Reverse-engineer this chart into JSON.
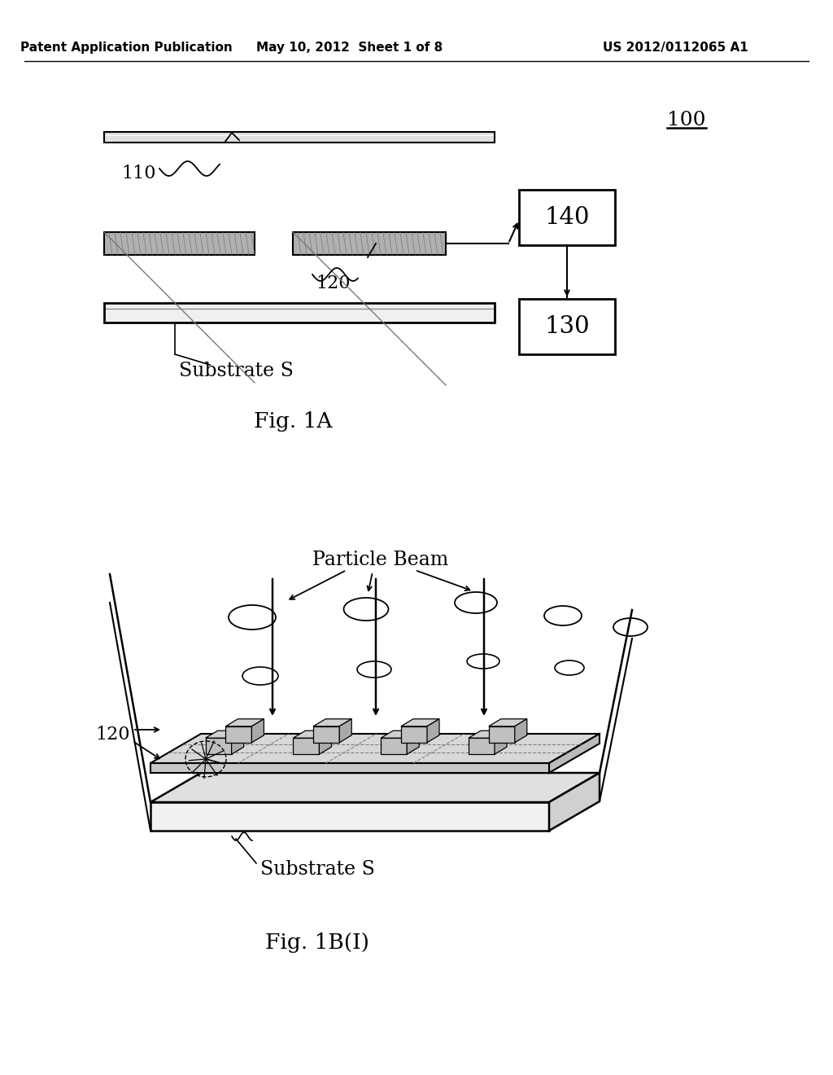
{
  "bg_color": "#ffffff",
  "header_left": "Patent Application Publication",
  "header_mid": "May 10, 2012  Sheet 1 of 8",
  "header_right": "US 2012/0112065 A1",
  "fig1a_label": "Fig. 1A",
  "fig1b_label": "Fig. 1B(I)",
  "label_100": "100",
  "label_110": "110",
  "label_120_1a": "120",
  "label_120_1b": "120",
  "label_130": "130",
  "label_140": "140",
  "label_substrate_s1": "Substrate S",
  "label_substrate_s2": "Substrate S",
  "label_particle_beam": "Particle Beam"
}
